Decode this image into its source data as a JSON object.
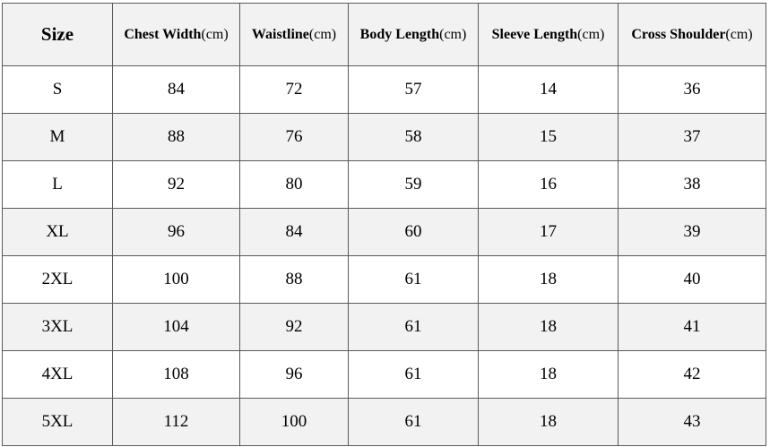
{
  "table": {
    "headers": [
      {
        "bold": "Size",
        "unit": ""
      },
      {
        "bold": "Chest Width",
        "unit": "(cm)"
      },
      {
        "bold": "Waistline",
        "unit": "(cm)"
      },
      {
        "bold": "Body Length",
        "unit": "(cm)"
      },
      {
        "bold": "Sleeve Length",
        "unit": "(cm)"
      },
      {
        "bold": "Cross Shoulder",
        "unit": "(cm)"
      }
    ],
    "rows": [
      [
        "S",
        "84",
        "72",
        "57",
        "14",
        "36"
      ],
      [
        "M",
        "88",
        "76",
        "58",
        "15",
        "37"
      ],
      [
        "L",
        "92",
        "80",
        "59",
        "16",
        "38"
      ],
      [
        "XL",
        "96",
        "84",
        "60",
        "17",
        "39"
      ],
      [
        "2XL",
        "100",
        "88",
        "61",
        "18",
        "40"
      ],
      [
        "3XL",
        "104",
        "92",
        "61",
        "18",
        "41"
      ],
      [
        "4XL",
        "108",
        "96",
        "61",
        "18",
        "42"
      ],
      [
        "5XL",
        "112",
        "100",
        "61",
        "18",
        "43"
      ]
    ]
  }
}
